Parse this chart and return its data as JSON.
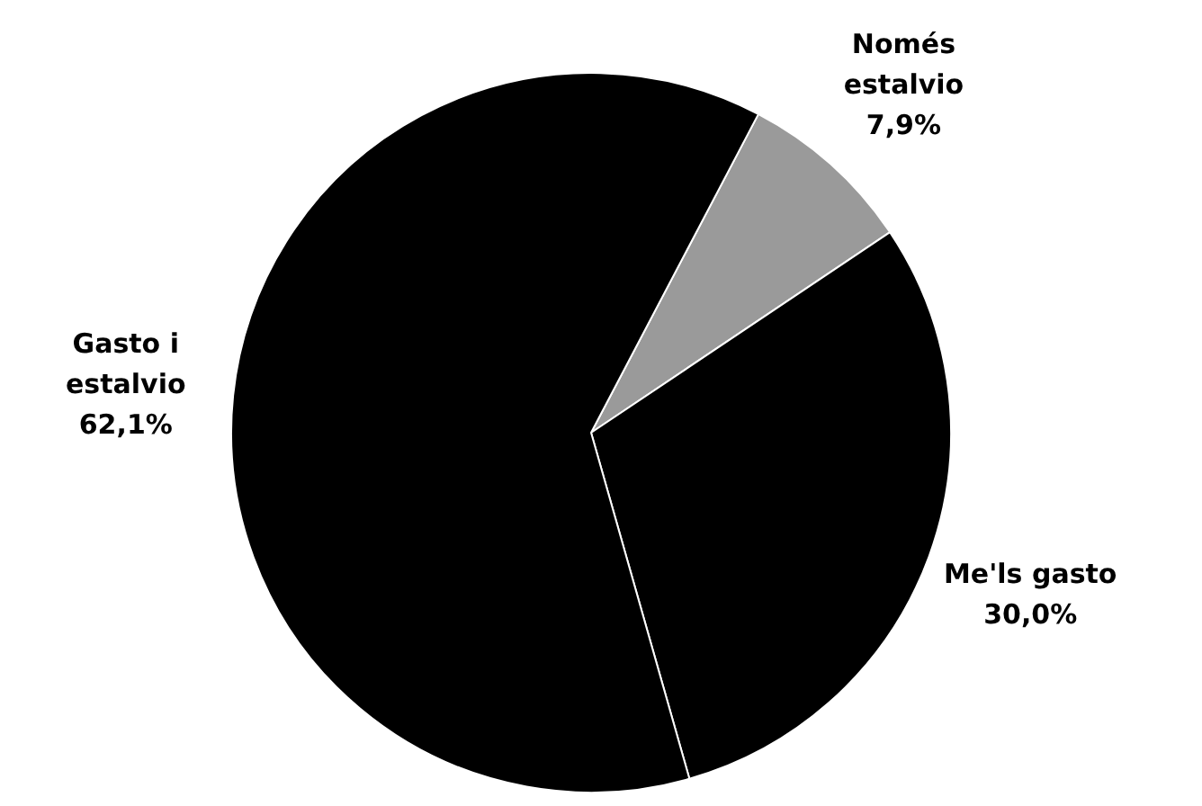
{
  "chart_data": {
    "type": "pie",
    "categories": [
      "Només estalvio",
      "Me'ls gasto",
      "Gasto i estalvio"
    ],
    "values": [
      7.9,
      30.0,
      62.1
    ],
    "colors": [
      "#9a9a9a",
      "#000000",
      "#000000"
    ],
    "value_labels": [
      "7,9%",
      "30,0%",
      "62,1%"
    ]
  }
}
